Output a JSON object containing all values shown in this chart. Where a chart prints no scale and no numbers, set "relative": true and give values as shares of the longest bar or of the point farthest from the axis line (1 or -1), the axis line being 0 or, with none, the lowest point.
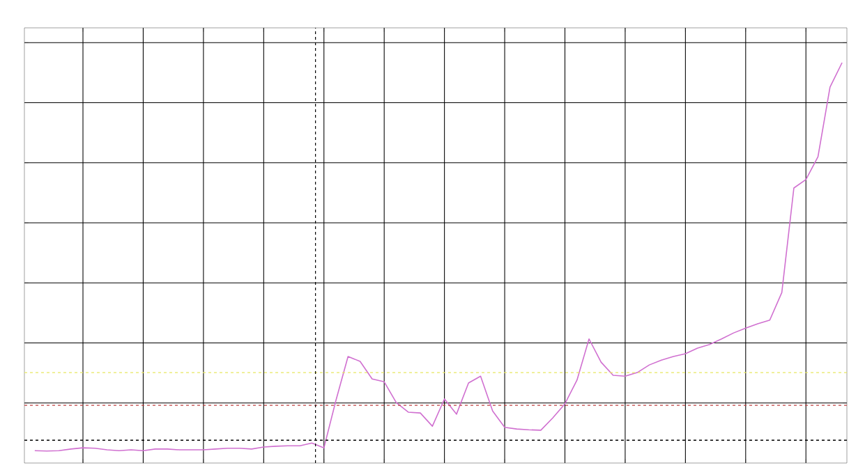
{
  "chart_data": {
    "type": "line",
    "relative": true,
    "grid": true,
    "marker": "none",
    "categories": [
      null,
      null,
      null,
      null,
      null,
      null,
      null,
      null,
      null,
      null,
      null,
      null,
      null,
      null,
      null,
      null,
      null,
      null,
      null,
      null,
      null,
      null,
      null,
      null,
      null,
      null,
      null,
      null,
      null,
      null,
      null,
      null,
      null,
      null,
      null,
      null,
      null,
      null,
      null,
      null,
      null,
      null,
      null,
      null,
      null,
      null,
      null,
      null,
      null,
      null,
      null,
      null,
      null,
      null,
      null,
      null,
      null,
      null,
      null,
      null,
      null,
      null,
      null,
      null,
      null,
      null,
      null,
      null
    ],
    "series": [
      {
        "color": "#d070d0",
        "line_style": "solid",
        "values": [
          0.031,
          0.03,
          0.031,
          0.035,
          0.038,
          0.037,
          0.033,
          0.031,
          0.033,
          0.031,
          0.035,
          0.035,
          0.033,
          0.033,
          0.033,
          0.035,
          0.037,
          0.037,
          0.035,
          0.04,
          0.042,
          0.043,
          0.043,
          0.05,
          0.038,
          0.157,
          0.266,
          0.254,
          0.21,
          0.203,
          0.151,
          0.127,
          0.125,
          0.092,
          0.16,
          0.122,
          0.2,
          0.217,
          0.13,
          0.089,
          0.085,
          0.083,
          0.082,
          0.113,
          0.148,
          0.207,
          0.31,
          0.252,
          0.219,
          0.217,
          0.226,
          0.245,
          0.257,
          0.266,
          0.273,
          0.287,
          0.296,
          0.31,
          0.325,
          0.337,
          0.348,
          0.357,
          0.426,
          0.687,
          0.708,
          0.765,
          0.939,
          1
        ]
      }
    ],
    "ref_lines": [
      {
        "axis": "y",
        "value": 0.226,
        "color": "#e8e860",
        "line_style": "dashed"
      },
      {
        "axis": "y",
        "value": 0.144,
        "color": "#c04040",
        "line_style": "dashed"
      },
      {
        "axis": "y",
        "value": 0.057,
        "color": "#000000",
        "line_style": "dashed"
      }
    ]
  }
}
